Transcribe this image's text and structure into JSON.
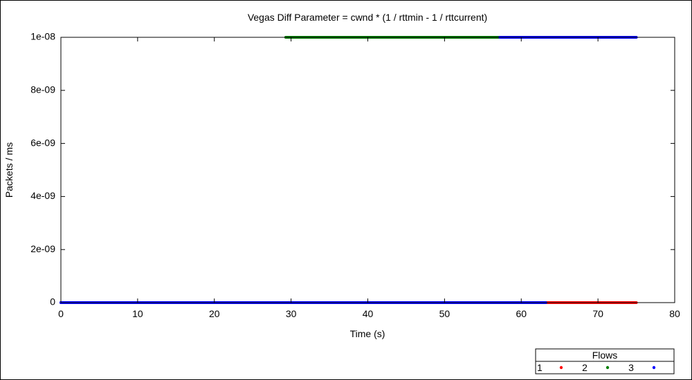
{
  "chart_data": {
    "type": "scatter",
    "title": "Vegas Diff Parameter = cwnd * (1 / rttmin - 1 / rttcurrent)",
    "xlabel": "Time (s)",
    "ylabel": "Packets / ms",
    "xlim": [
      0,
      80
    ],
    "ylim": [
      0,
      1e-08
    ],
    "x_ticks": [
      0,
      10,
      20,
      30,
      40,
      50,
      60,
      70,
      80
    ],
    "y_ticks": [
      0,
      2e-09,
      4e-09,
      6e-09,
      8e-09,
      1e-08
    ],
    "x_tick_labels": [
      "0",
      "10",
      "20",
      "30",
      "40",
      "50",
      "60",
      "70",
      "80"
    ],
    "y_tick_labels": [
      "0",
      "2e-09",
      "4e-09",
      "6e-09",
      "8e-09",
      "1e-08"
    ],
    "grid": false,
    "legend": {
      "title": "Flows",
      "placement": "bottom-right outside",
      "entries": [
        "1",
        "2",
        "3"
      ]
    },
    "series": [
      {
        "name": "1",
        "color": "#ff0000",
        "segments": [
          {
            "x_start": 0,
            "x_end": 75,
            "y": 0
          }
        ]
      },
      {
        "name": "2",
        "color": "#008000",
        "segments": [
          {
            "x_start": 29.3,
            "x_end": 57.2,
            "y": 1e-08
          },
          {
            "x_start": 0,
            "x_end": 63.2,
            "y": 0
          }
        ]
      },
      {
        "name": "3",
        "color": "#0000ff",
        "segments": [
          {
            "x_start": 57.2,
            "x_end": 75,
            "y": 1e-08
          },
          {
            "x_start": 0,
            "x_end": 63.2,
            "y": 0
          }
        ]
      }
    ]
  }
}
